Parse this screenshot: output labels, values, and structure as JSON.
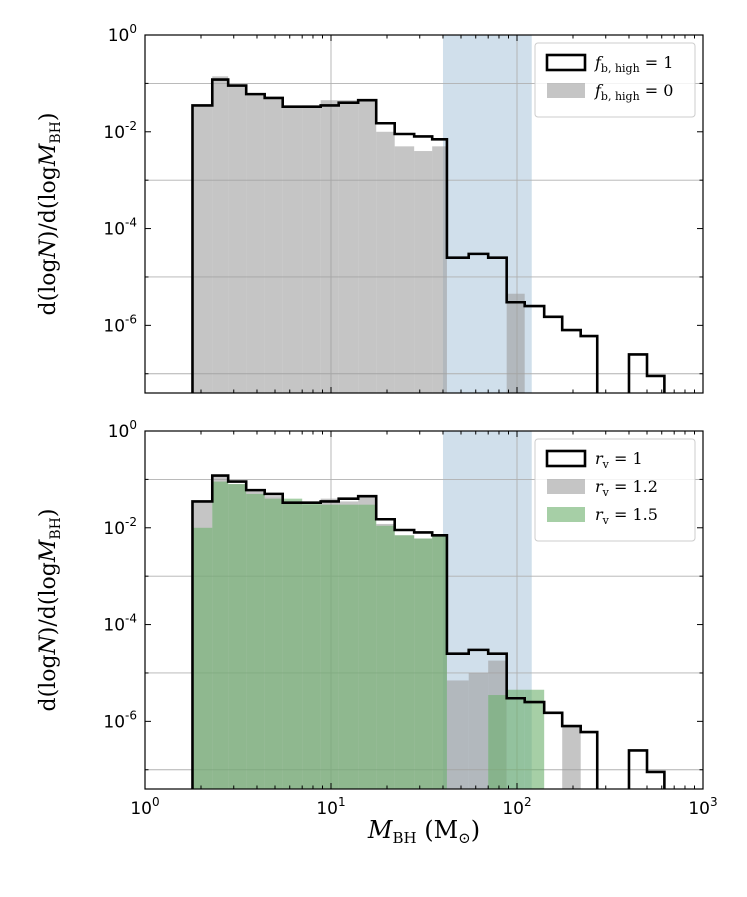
{
  "figure": {
    "xlabel": "M_BH (M⊙)",
    "ylabel": "d(logN)/d(logM_BH)"
  },
  "chart_data": [
    {
      "type": "histogram",
      "xscale": "log",
      "yscale": "log",
      "xlim": [
        1,
        1000
      ],
      "ylim": [
        4e-08,
        1
      ],
      "y_ticks": [
        "10^0",
        "10^-2",
        "10^-4",
        "10^-6"
      ],
      "x_ticks": [],
      "grid": true,
      "legend_position": "top-right",
      "shaded_band": {
        "x": [
          40,
          120
        ],
        "color": "#c8d9e8"
      },
      "bin_edges": [
        1.8,
        2.3,
        2.8,
        3.5,
        4.4,
        5.5,
        7.0,
        8.8,
        11.0,
        14.0,
        17.5,
        22.0,
        28.0,
        35.0,
        42.0,
        55.0,
        70.0,
        88.0,
        110.0,
        140.0,
        175.0,
        220.0,
        270.0,
        320.0,
        400.0,
        500.0,
        620.0,
        750.0
      ],
      "series": [
        {
          "name": "f_b,high = 1",
          "label_main": "f",
          "label_sub": "b, high",
          "label_rest": " = 1",
          "style": "step",
          "color": "#000000",
          "values": [
            0.035,
            0.12,
            0.09,
            0.06,
            0.05,
            0.033,
            0.033,
            0.035,
            0.04,
            0.045,
            0.015,
            0.009,
            0.008,
            0.007,
            2.5e-05,
            3e-05,
            2.5e-05,
            3e-06,
            2.5e-06,
            1.5e-06,
            8e-07,
            6e-07,
            0,
            0,
            2.5e-07,
            9e-08,
            0
          ]
        },
        {
          "name": "f_b,high = 0",
          "label_main": "f",
          "label_sub": "b, high",
          "label_rest": " = 0",
          "style": "filled",
          "color": "#9e9e9e",
          "values": [
            0.035,
            0.14,
            0.09,
            0.06,
            0.05,
            0.033,
            0.035,
            0.045,
            0.045,
            0.045,
            0.01,
            0.005,
            0.004,
            0.005,
            0,
            0,
            0,
            4.5e-06,
            0,
            0,
            0,
            0,
            0,
            0,
            0,
            0,
            0
          ]
        }
      ]
    },
    {
      "type": "histogram",
      "xscale": "log",
      "yscale": "log",
      "xlim": [
        1,
        1000
      ],
      "ylim": [
        4e-08,
        1
      ],
      "y_ticks": [
        "10^0",
        "10^-2",
        "10^-4",
        "10^-6"
      ],
      "x_ticks": [
        "10^0",
        "10^1",
        "10^2",
        "10^3"
      ],
      "grid": true,
      "legend_position": "top-right",
      "shaded_band": {
        "x": [
          40,
          120
        ],
        "color": "#c8d9e8"
      },
      "bin_edges": [
        1.8,
        2.3,
        2.8,
        3.5,
        4.4,
        5.5,
        7.0,
        8.8,
        11.0,
        14.0,
        17.5,
        22.0,
        28.0,
        35.0,
        42.0,
        55.0,
        70.0,
        88.0,
        110.0,
        140.0,
        175.0,
        220.0,
        270.0,
        320.0,
        400.0,
        500.0,
        620.0,
        750.0
      ],
      "series": [
        {
          "name": "r_v = 1",
          "label_main": "r",
          "label_sub": "v",
          "label_rest": " = 1",
          "style": "step",
          "color": "#000000",
          "values": [
            0.035,
            0.12,
            0.09,
            0.06,
            0.05,
            0.033,
            0.033,
            0.035,
            0.04,
            0.045,
            0.015,
            0.009,
            0.008,
            0.007,
            2.5e-05,
            3e-05,
            2.5e-05,
            3e-06,
            2.5e-06,
            1.5e-06,
            8e-07,
            6e-07,
            0,
            0,
            2.5e-07,
            9e-08,
            0
          ]
        },
        {
          "name": "r_v = 1.2",
          "label_main": "r",
          "label_sub": "v",
          "label_rest": " = 1.2",
          "style": "filled",
          "color": "#9e9e9e",
          "values": [
            0.035,
            0.12,
            0.08,
            0.06,
            0.045,
            0.035,
            0.03,
            0.04,
            0.035,
            0.045,
            0.012,
            0.007,
            0.006,
            0.007,
            7e-06,
            1e-05,
            1.8e-05,
            0,
            0,
            0,
            8e-07,
            0,
            0,
            0,
            0,
            0,
            0
          ]
        },
        {
          "name": "r_v = 1.5",
          "label_main": "r",
          "label_sub": "v",
          "label_rest": " = 1.5",
          "style": "filled",
          "color": "#6aaf6a",
          "values": [
            0.01,
            0.09,
            0.08,
            0.05,
            0.04,
            0.04,
            0.035,
            0.03,
            0.03,
            0.03,
            0.011,
            0.007,
            0.006,
            0.007,
            0,
            0,
            3.5e-06,
            4.5e-06,
            4.5e-06,
            0,
            0,
            0,
            0,
            0,
            0,
            0,
            0
          ]
        }
      ]
    }
  ]
}
